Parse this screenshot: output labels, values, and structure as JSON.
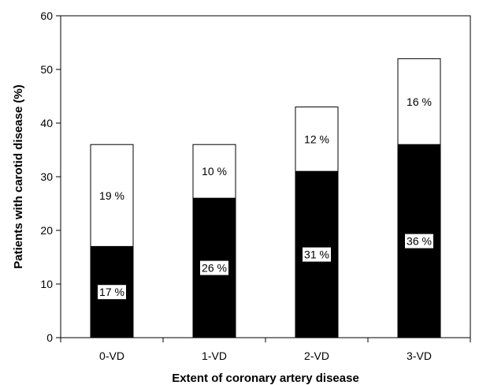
{
  "chart_data": {
    "type": "bar",
    "stacked": true,
    "categories": [
      "0-VD",
      "1-VD",
      "2-VD",
      "3-VD"
    ],
    "series": [
      {
        "values": [
          17,
          26,
          31,
          36
        ],
        "labels": [
          "17 %",
          "26 %",
          "31 %",
          "36 %"
        ],
        "color": "#000000"
      },
      {
        "values": [
          19,
          10,
          12,
          16
        ],
        "labels": [
          "19 %",
          "10 %",
          "12 %",
          "16 %"
        ],
        "color": "#ffffff"
      }
    ],
    "xlabel": "Extent of coronary artery disease",
    "ylabel": "Patients with carotid disease (%)",
    "ylim": [
      0,
      60
    ],
    "yticks": [
      "0",
      "10",
      "20",
      "30",
      "40",
      "50",
      "60"
    ],
    "grid": false,
    "legend": "none"
  }
}
